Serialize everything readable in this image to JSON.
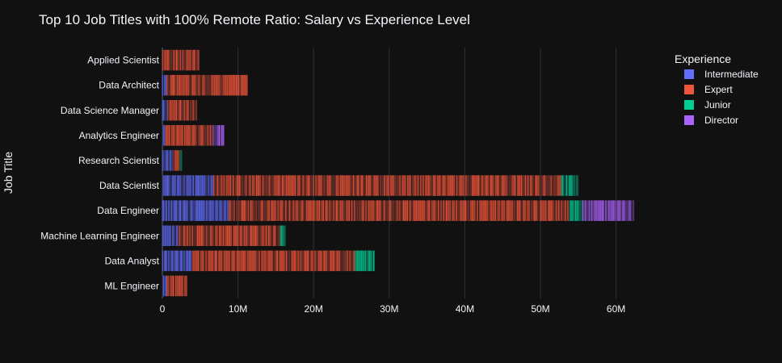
{
  "chart_data": {
    "type": "bar",
    "orientation": "horizontal",
    "barmode": "stack",
    "title": "Top 10 Job Titles with 100% Remote Ratio: Salary vs Experience Level",
    "ylabel": "Job Title",
    "xlabel": "",
    "xlim": [
      0,
      62500000
    ],
    "x_ticks": [
      0,
      10000000,
      20000000,
      30000000,
      40000000,
      50000000,
      60000000
    ],
    "x_tick_labels": [
      "0",
      "10M",
      "20M",
      "30M",
      "40M",
      "50M",
      "60M"
    ],
    "grid": true,
    "categories": [
      "Applied Scientist",
      "Data Architect",
      "Data Science Manager",
      "Analytics Engineer",
      "Research Scientist",
      "Data Scientist",
      "Data Engineer",
      "Machine Learning Engineer",
      "Data Analyst",
      "ML Engineer"
    ],
    "legend": {
      "title": "Experience",
      "placement": "top-right"
    },
    "series": [
      {
        "name": "Intermediate",
        "color": "#636efa",
        "values": [
          0,
          600000,
          700000,
          400000,
          1400000,
          6800000,
          8800000,
          2100000,
          3900000,
          600000
        ]
      },
      {
        "name": "Expert",
        "color": "#ef553b",
        "values": [
          4900000,
          10700000,
          3900000,
          6300000,
          900000,
          46000000,
          45000000,
          13500000,
          21600000,
          2700000
        ]
      },
      {
        "name": "Junior",
        "color": "#00cc96",
        "values": [
          0,
          0,
          0,
          0,
          300000,
          2200000,
          1800000,
          700000,
          2600000,
          0
        ]
      },
      {
        "name": "Director",
        "color": "#ab63fa",
        "values": [
          0,
          0,
          0,
          1500000,
          0,
          0,
          6800000,
          0,
          0,
          0
        ]
      }
    ]
  }
}
